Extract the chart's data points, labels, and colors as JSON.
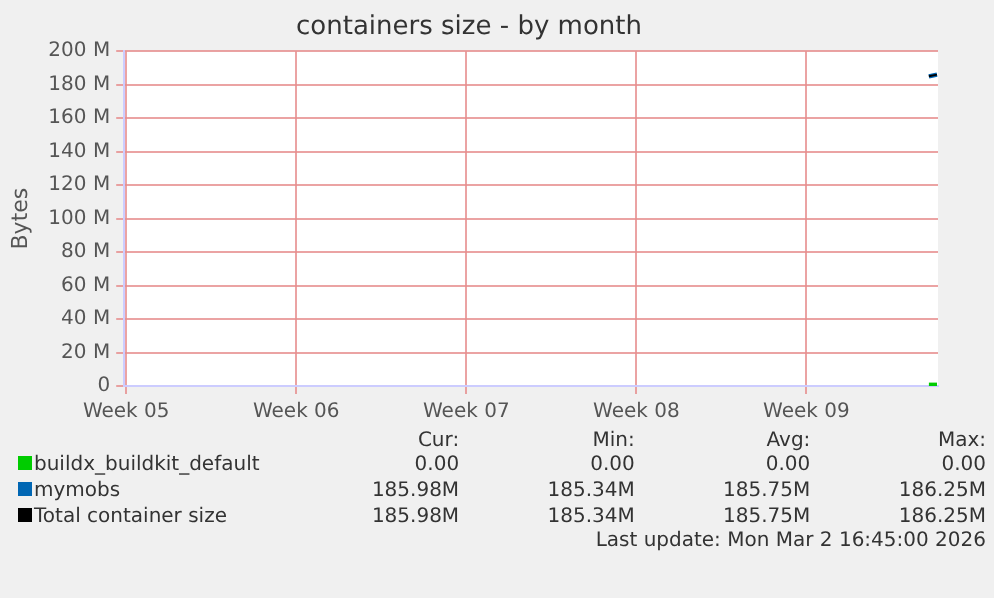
{
  "chart_data": {
    "type": "line",
    "title": "containers size - by month",
    "ylabel": "Bytes",
    "xlim": [
      "2026-01-28T05:00",
      "2026-03-02T17:00"
    ],
    "xticks": [
      {
        "value": "2026-01-28T07:00",
        "label": "Week 05"
      },
      {
        "value": "2026-02-04T07:00",
        "label": "Week 06"
      },
      {
        "value": "2026-02-11T07:00",
        "label": "Week 07"
      },
      {
        "value": "2026-02-18T07:00",
        "label": "Week 08"
      },
      {
        "value": "2026-02-25T07:00",
        "label": "Week 09"
      }
    ],
    "ylim": [
      0,
      200
    ],
    "yticks": [
      {
        "value": 0,
        "label": "0"
      },
      {
        "value": 20,
        "label": "20 M"
      },
      {
        "value": 40,
        "label": "40 M"
      },
      {
        "value": 60,
        "label": "60 M"
      },
      {
        "value": 80,
        "label": "80 M"
      },
      {
        "value": 100,
        "label": "100 M"
      },
      {
        "value": 120,
        "label": "120 M"
      },
      {
        "value": 140,
        "label": "140 M"
      },
      {
        "value": 160,
        "label": "160 M"
      },
      {
        "value": 180,
        "label": "180 M"
      },
      {
        "value": 200,
        "label": "200 M"
      }
    ],
    "series": [
      {
        "name": "buildx_buildkit_default",
        "color": "#00cc00",
        "x": [
          "2026-03-02T08:00",
          "2026-03-02T16:00"
        ],
        "values": [
          0,
          0
        ]
      },
      {
        "name": "mymobs",
        "color": "#0066b3",
        "x": [
          "2026-03-02T08:00",
          "2026-03-02T16:00"
        ],
        "values": [
          185,
          186
        ]
      },
      {
        "name": "Total container size",
        "color": "#000000",
        "x": [
          "2026-03-02T08:00",
          "2026-03-02T16:00"
        ],
        "values": [
          185,
          186
        ]
      }
    ],
    "annotations": [
      "Cur:",
      "Min:",
      "Avg:",
      "Max:",
      "0.00",
      "0.00",
      "0.00",
      "0.00",
      "185.98M",
      "185.34M",
      "185.75M",
      "186.25M",
      "185.98M",
      "185.34M",
      "185.75M",
      "186.25M",
      "Last update: Mon Mar  2 16:45:00 2026"
    ],
    "grid": true,
    "legend": "bottom",
    "marker": "none"
  }
}
